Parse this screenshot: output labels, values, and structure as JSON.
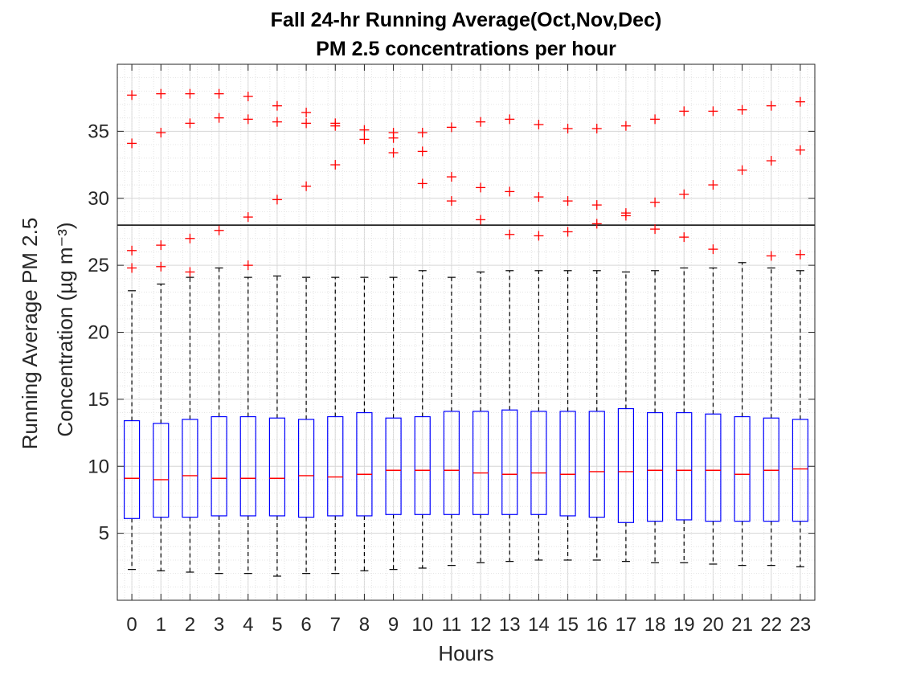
{
  "chart_data": {
    "type": "box",
    "title": "Fall 24-hr Running Average(Oct,Nov,Dec)",
    "subtitle": "PM 2.5 concentrations per hour",
    "xlabel": "Hours",
    "ylabel": "Running Average PM 2.5",
    "ylabel_line2": "Concentration",
    "ylabel_unit": "(µg m⁻³)",
    "ylim": [
      0,
      40
    ],
    "yticks": [
      5,
      10,
      15,
      20,
      25,
      30,
      35
    ],
    "grid": "major and minor (dotted)",
    "reference_line": 28,
    "colors": {
      "box": "#0000ff",
      "median": "#ff0000",
      "whisker": "#000000",
      "outlier": "#ff0000",
      "reference_line": "#000000"
    },
    "categories": [
      "0",
      "1",
      "2",
      "3",
      "4",
      "5",
      "6",
      "7",
      "8",
      "9",
      "10",
      "11",
      "12",
      "13",
      "14",
      "15",
      "16",
      "17",
      "18",
      "19",
      "20",
      "21",
      "22",
      "23"
    ],
    "boxes": [
      {
        "hour": "0",
        "whisker_low": 2.3,
        "q1": 6.1,
        "median": 9.1,
        "q3": 13.4,
        "whisker_high": 23.1,
        "outliers": [
          24.8,
          26.1,
          34.1,
          37.7
        ]
      },
      {
        "hour": "1",
        "whisker_low": 2.2,
        "q1": 6.2,
        "median": 9.0,
        "q3": 13.2,
        "whisker_high": 23.6,
        "outliers": [
          24.9,
          26.5,
          34.9,
          37.8
        ]
      },
      {
        "hour": "2",
        "whisker_low": 2.1,
        "q1": 6.2,
        "median": 9.3,
        "q3": 13.5,
        "whisker_high": 24.1,
        "outliers": [
          24.5,
          27.0,
          35.6,
          37.8
        ]
      },
      {
        "hour": "3",
        "whisker_low": 2.0,
        "q1": 6.3,
        "median": 9.1,
        "q3": 13.7,
        "whisker_high": 24.8,
        "outliers": [
          27.6,
          36.0,
          37.8
        ]
      },
      {
        "hour": "4",
        "whisker_low": 2.0,
        "q1": 6.3,
        "median": 9.1,
        "q3": 13.7,
        "whisker_high": 24.1,
        "outliers": [
          25.0,
          28.6,
          35.9,
          37.6
        ]
      },
      {
        "hour": "5",
        "whisker_low": 1.8,
        "q1": 6.3,
        "median": 9.1,
        "q3": 13.6,
        "whisker_high": 24.2,
        "outliers": [
          29.9,
          35.7,
          36.9
        ]
      },
      {
        "hour": "6",
        "whisker_low": 2.0,
        "q1": 6.2,
        "median": 9.3,
        "q3": 13.5,
        "whisker_high": 24.1,
        "outliers": [
          30.9,
          35.6,
          36.4
        ]
      },
      {
        "hour": "7",
        "whisker_low": 2.0,
        "q1": 6.3,
        "median": 9.2,
        "q3": 13.7,
        "whisker_high": 24.1,
        "outliers": [
          32.5,
          35.4,
          35.6
        ]
      },
      {
        "hour": "8",
        "whisker_low": 2.2,
        "q1": 6.3,
        "median": 9.4,
        "q3": 14.0,
        "whisker_high": 24.1,
        "outliers": [
          34.4,
          35.1
        ]
      },
      {
        "hour": "9",
        "whisker_low": 2.3,
        "q1": 6.4,
        "median": 9.7,
        "q3": 13.6,
        "whisker_high": 24.1,
        "outliers": [
          33.4,
          34.5,
          34.9
        ]
      },
      {
        "hour": "10",
        "whisker_low": 2.4,
        "q1": 6.4,
        "median": 9.7,
        "q3": 13.7,
        "whisker_high": 24.6,
        "outliers": [
          31.1,
          33.5,
          34.9
        ]
      },
      {
        "hour": "11",
        "whisker_low": 2.6,
        "q1": 6.4,
        "median": 9.7,
        "q3": 14.1,
        "whisker_high": 24.1,
        "outliers": [
          29.8,
          31.6,
          35.3
        ]
      },
      {
        "hour": "12",
        "whisker_low": 2.8,
        "q1": 6.4,
        "median": 9.5,
        "q3": 14.1,
        "whisker_high": 24.5,
        "outliers": [
          28.4,
          30.8,
          35.7
        ]
      },
      {
        "hour": "13",
        "whisker_low": 2.9,
        "q1": 6.4,
        "median": 9.4,
        "q3": 14.2,
        "whisker_high": 24.6,
        "outliers": [
          27.3,
          30.5,
          35.9
        ]
      },
      {
        "hour": "14",
        "whisker_low": 3.0,
        "q1": 6.4,
        "median": 9.5,
        "q3": 14.1,
        "whisker_high": 24.6,
        "outliers": [
          27.2,
          30.1,
          35.5
        ]
      },
      {
        "hour": "15",
        "whisker_low": 3.0,
        "q1": 6.3,
        "median": 9.4,
        "q3": 14.1,
        "whisker_high": 24.6,
        "outliers": [
          27.5,
          29.8,
          35.2
        ]
      },
      {
        "hour": "16",
        "whisker_low": 3.0,
        "q1": 6.2,
        "median": 9.6,
        "q3": 14.1,
        "whisker_high": 24.6,
        "outliers": [
          28.1,
          29.5,
          35.2
        ]
      },
      {
        "hour": "17",
        "whisker_low": 2.9,
        "q1": 5.8,
        "median": 9.6,
        "q3": 14.3,
        "whisker_high": 24.5,
        "outliers": [
          28.7,
          28.9,
          35.4
        ]
      },
      {
        "hour": "18",
        "whisker_low": 2.8,
        "q1": 5.9,
        "median": 9.7,
        "q3": 14.0,
        "whisker_high": 24.6,
        "outliers": [
          27.7,
          29.7,
          35.9
        ]
      },
      {
        "hour": "19",
        "whisker_low": 2.8,
        "q1": 6.0,
        "median": 9.7,
        "q3": 14.0,
        "whisker_high": 24.8,
        "outliers": [
          27.1,
          30.3,
          36.5
        ]
      },
      {
        "hour": "20",
        "whisker_low": 2.7,
        "q1": 5.9,
        "median": 9.7,
        "q3": 13.9,
        "whisker_high": 24.8,
        "outliers": [
          26.2,
          31.0,
          36.5
        ]
      },
      {
        "hour": "21",
        "whisker_low": 2.6,
        "q1": 5.9,
        "median": 9.4,
        "q3": 13.7,
        "whisker_high": 25.2,
        "outliers": [
          32.1,
          36.6
        ]
      },
      {
        "hour": "22",
        "whisker_low": 2.6,
        "q1": 5.9,
        "median": 9.7,
        "q3": 13.6,
        "whisker_high": 24.8,
        "outliers": [
          25.7,
          32.8,
          36.9
        ]
      },
      {
        "hour": "23",
        "whisker_low": 2.5,
        "q1": 5.9,
        "median": 9.8,
        "q3": 13.5,
        "whisker_high": 24.6,
        "outliers": [
          25.8,
          33.6,
          37.2
        ]
      }
    ]
  }
}
